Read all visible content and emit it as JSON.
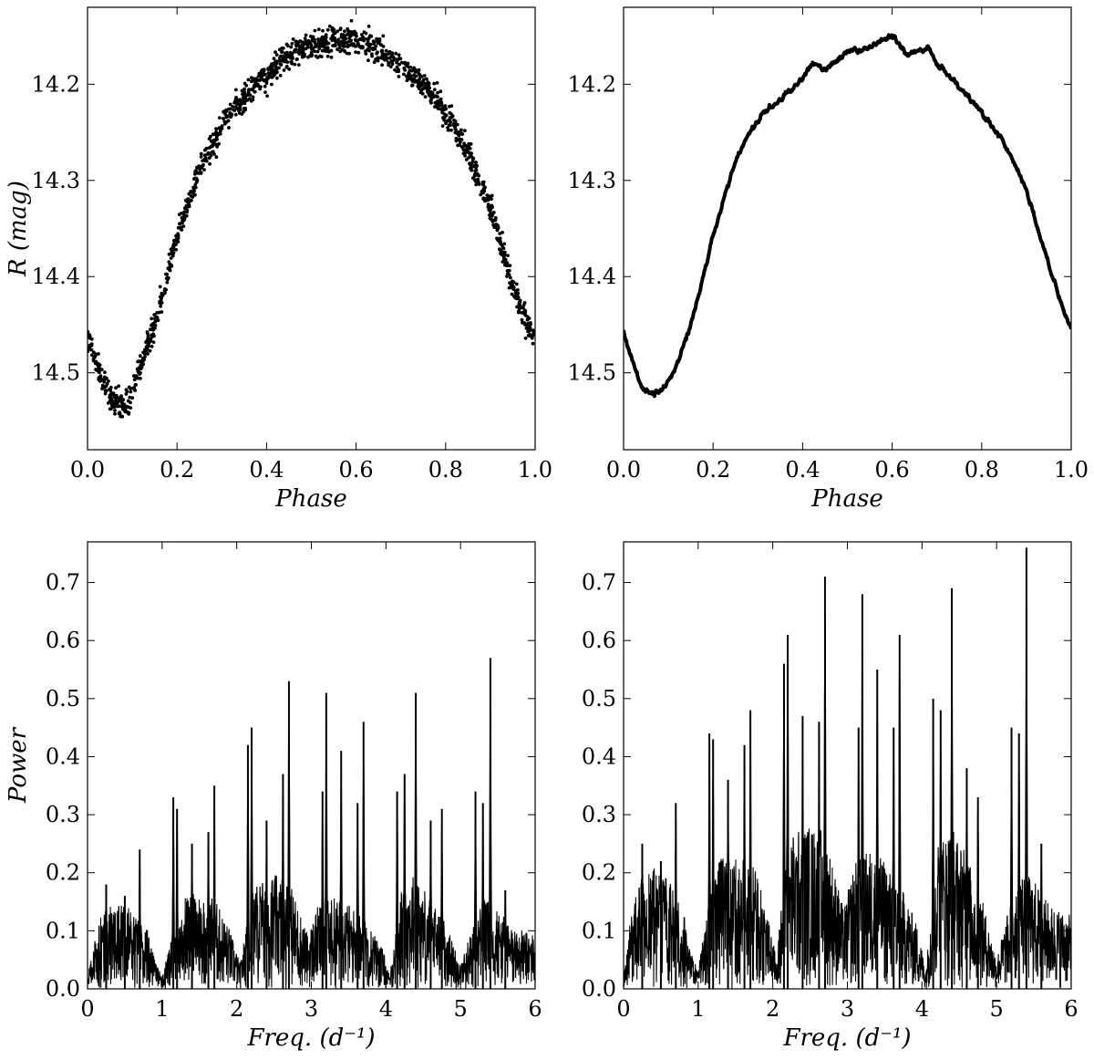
{
  "chart_data": [
    {
      "id": "tl",
      "type": "scatter",
      "xlabel": "Phase",
      "ylabel": "R (mag)",
      "xlim": [
        0.0,
        1.0
      ],
      "ylim": [
        14.58,
        14.12
      ],
      "y_inverted": true,
      "xticks": [
        "0.0",
        "0.2",
        "0.4",
        "0.6",
        "0.8",
        "1.0"
      ],
      "yticks": [
        "14.2",
        "14.3",
        "14.4",
        "14.5"
      ],
      "grid": false,
      "series": [
        {
          "style": "scattered points, noise about 0.012 mag",
          "x": [
            0.0,
            0.02,
            0.04,
            0.06,
            0.08,
            0.1,
            0.12,
            0.15,
            0.2,
            0.25,
            0.3,
            0.35,
            0.4,
            0.45,
            0.5,
            0.55,
            0.6,
            0.65,
            0.7,
            0.75,
            0.8,
            0.85,
            0.9,
            0.95,
            1.0
          ],
          "y": [
            14.465,
            14.49,
            14.515,
            14.53,
            14.535,
            14.52,
            14.49,
            14.45,
            14.36,
            14.29,
            14.24,
            14.215,
            14.19,
            14.17,
            14.16,
            14.155,
            14.155,
            14.165,
            14.18,
            14.2,
            14.23,
            14.27,
            14.33,
            14.41,
            14.47
          ]
        }
      ]
    },
    {
      "id": "tr",
      "type": "line",
      "xlabel": "Phase",
      "ylabel": "",
      "xlim": [
        0.0,
        1.0
      ],
      "ylim": [
        14.58,
        14.12
      ],
      "y_inverted": true,
      "xticks": [
        "0.0",
        "0.2",
        "0.4",
        "0.6",
        "0.8",
        "1.0"
      ],
      "yticks": [
        "14.2",
        "14.3",
        "14.4",
        "14.5"
      ],
      "grid": false,
      "series": [
        {
          "style": "dense thick jagged curve",
          "x": [
            0.0,
            0.02,
            0.04,
            0.06,
            0.08,
            0.1,
            0.12,
            0.15,
            0.2,
            0.25,
            0.3,
            0.35,
            0.4,
            0.42,
            0.45,
            0.5,
            0.55,
            0.6,
            0.63,
            0.65,
            0.68,
            0.7,
            0.75,
            0.8,
            0.85,
            0.9,
            0.95,
            1.0
          ],
          "y": [
            14.455,
            14.49,
            14.515,
            14.522,
            14.52,
            14.51,
            14.49,
            14.45,
            14.36,
            14.28,
            14.235,
            14.215,
            14.195,
            14.18,
            14.185,
            14.165,
            14.16,
            14.15,
            14.17,
            14.168,
            14.162,
            14.18,
            14.2,
            14.23,
            14.26,
            14.31,
            14.39,
            14.455
          ]
        }
      ]
    },
    {
      "id": "bl",
      "type": "line",
      "xlabel": "Freq. (d⁻¹)",
      "ylabel": "Power",
      "xlim": [
        0,
        6
      ],
      "ylim": [
        0.0,
        0.77
      ],
      "xticks": [
        "0",
        "1",
        "2",
        "3",
        "4",
        "5",
        "6"
      ],
      "yticks": [
        "0.0",
        "0.1",
        "0.2",
        "0.3",
        "0.4",
        "0.5",
        "0.6",
        "0.7"
      ],
      "grid": false,
      "series": [
        {
          "style": "dense periodogram",
          "envelope_x": [
            0.0,
            0.1,
            0.2,
            0.4,
            0.6,
            0.8,
            0.9,
            1.0,
            1.1,
            1.3,
            1.5,
            1.7,
            1.9,
            2.05,
            2.2,
            2.45,
            2.7,
            2.95,
            3.1,
            3.3,
            3.5,
            3.75,
            3.95,
            4.05,
            4.2,
            4.4,
            4.6,
            4.8,
            5.0,
            5.1,
            5.3,
            5.5,
            5.7,
            6.0
          ],
          "envelope_y": [
            0.02,
            0.08,
            0.13,
            0.14,
            0.13,
            0.1,
            0.05,
            0.02,
            0.07,
            0.15,
            0.16,
            0.15,
            0.1,
            0.04,
            0.17,
            0.19,
            0.18,
            0.09,
            0.14,
            0.15,
            0.14,
            0.11,
            0.07,
            0.02,
            0.16,
            0.19,
            0.15,
            0.11,
            0.04,
            0.08,
            0.15,
            0.13,
            0.1,
            0.09
          ],
          "peaks": [
            {
              "x": 0.25,
              "y": 0.18
            },
            {
              "x": 0.5,
              "y": 0.16
            },
            {
              "x": 0.7,
              "y": 0.24
            },
            {
              "x": 1.15,
              "y": 0.33
            },
            {
              "x": 1.2,
              "y": 0.31
            },
            {
              "x": 1.4,
              "y": 0.25
            },
            {
              "x": 1.62,
              "y": 0.27
            },
            {
              "x": 1.7,
              "y": 0.35
            },
            {
              "x": 2.15,
              "y": 0.42
            },
            {
              "x": 2.2,
              "y": 0.45
            },
            {
              "x": 2.4,
              "y": 0.29
            },
            {
              "x": 2.62,
              "y": 0.37
            },
            {
              "x": 2.7,
              "y": 0.53
            },
            {
              "x": 3.15,
              "y": 0.34
            },
            {
              "x": 3.2,
              "y": 0.51
            },
            {
              "x": 3.4,
              "y": 0.41
            },
            {
              "x": 3.62,
              "y": 0.32
            },
            {
              "x": 3.7,
              "y": 0.46
            },
            {
              "x": 4.15,
              "y": 0.34
            },
            {
              "x": 4.25,
              "y": 0.37
            },
            {
              "x": 4.4,
              "y": 0.51
            },
            {
              "x": 4.6,
              "y": 0.29
            },
            {
              "x": 4.75,
              "y": 0.31
            },
            {
              "x": 5.2,
              "y": 0.34
            },
            {
              "x": 5.3,
              "y": 0.32
            },
            {
              "x": 5.4,
              "y": 0.57
            },
            {
              "x": 5.6,
              "y": 0.17
            }
          ]
        }
      ]
    },
    {
      "id": "br",
      "type": "line",
      "xlabel": "Freq. (d⁻¹)",
      "ylabel": "",
      "xlim": [
        0,
        6
      ],
      "ylim": [
        0.0,
        0.77
      ],
      "xticks": [
        "0",
        "1",
        "2",
        "3",
        "4",
        "5",
        "6"
      ],
      "yticks": [
        "0.0",
        "0.1",
        "0.2",
        "0.3",
        "0.4",
        "0.5",
        "0.6",
        "0.7"
      ],
      "grid": false,
      "series": [
        {
          "style": "dense periodogram",
          "envelope_x": [
            0.0,
            0.1,
            0.2,
            0.4,
            0.6,
            0.8,
            0.9,
            1.0,
            1.1,
            1.3,
            1.5,
            1.7,
            1.9,
            2.05,
            2.2,
            2.45,
            2.7,
            2.95,
            3.1,
            3.3,
            3.5,
            3.75,
            3.95,
            4.05,
            4.2,
            4.4,
            4.6,
            4.8,
            5.0,
            5.1,
            5.3,
            5.5,
            5.7,
            6.0
          ],
          "envelope_y": [
            0.03,
            0.12,
            0.19,
            0.2,
            0.18,
            0.13,
            0.06,
            0.03,
            0.12,
            0.22,
            0.23,
            0.22,
            0.14,
            0.05,
            0.25,
            0.27,
            0.26,
            0.13,
            0.21,
            0.23,
            0.21,
            0.16,
            0.1,
            0.03,
            0.24,
            0.27,
            0.22,
            0.15,
            0.05,
            0.1,
            0.2,
            0.18,
            0.14,
            0.12
          ],
          "peaks": [
            {
              "x": 0.25,
              "y": 0.25
            },
            {
              "x": 0.5,
              "y": 0.22
            },
            {
              "x": 0.7,
              "y": 0.32
            },
            {
              "x": 1.15,
              "y": 0.44
            },
            {
              "x": 1.2,
              "y": 0.43
            },
            {
              "x": 1.4,
              "y": 0.36
            },
            {
              "x": 1.62,
              "y": 0.42
            },
            {
              "x": 1.7,
              "y": 0.48
            },
            {
              "x": 2.15,
              "y": 0.56
            },
            {
              "x": 2.2,
              "y": 0.61
            },
            {
              "x": 2.4,
              "y": 0.47
            },
            {
              "x": 2.62,
              "y": 0.46
            },
            {
              "x": 2.7,
              "y": 0.71
            },
            {
              "x": 3.15,
              "y": 0.45
            },
            {
              "x": 3.2,
              "y": 0.68
            },
            {
              "x": 3.4,
              "y": 0.55
            },
            {
              "x": 3.62,
              "y": 0.45
            },
            {
              "x": 3.7,
              "y": 0.61
            },
            {
              "x": 4.15,
              "y": 0.5
            },
            {
              "x": 4.25,
              "y": 0.48
            },
            {
              "x": 4.4,
              "y": 0.69
            },
            {
              "x": 4.6,
              "y": 0.38
            },
            {
              "x": 4.75,
              "y": 0.33
            },
            {
              "x": 5.2,
              "y": 0.45
            },
            {
              "x": 5.3,
              "y": 0.44
            },
            {
              "x": 5.4,
              "y": 0.76
            },
            {
              "x": 5.6,
              "y": 0.25
            }
          ]
        }
      ]
    }
  ]
}
